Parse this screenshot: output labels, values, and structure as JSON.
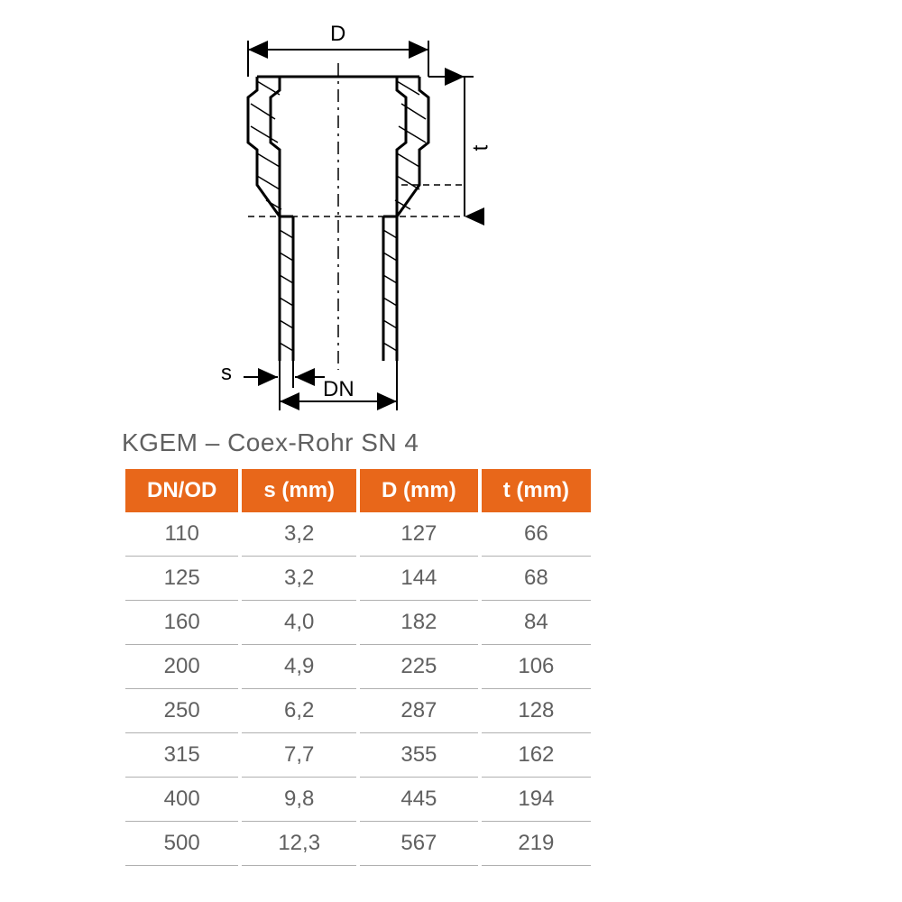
{
  "diagram": {
    "labels": {
      "D": "D",
      "t": "t",
      "s": "s",
      "DN": "DN"
    },
    "stroke_color": "#000000",
    "stroke_width_main": 3,
    "stroke_width_dim": 2,
    "dash_pattern": "8,6,3,6"
  },
  "table": {
    "title": "KGEM – Coex-Rohr SN 4",
    "header_bg": "#e8671a",
    "header_fg": "#ffffff",
    "body_fg": "#606060",
    "row_border": "#b0b0b0",
    "columns": [
      "DN/OD",
      "s (mm)",
      "D (mm)",
      "t (mm)"
    ],
    "rows": [
      [
        "110",
        "3,2",
        "127",
        "66"
      ],
      [
        "125",
        "3,2",
        "144",
        "68"
      ],
      [
        "160",
        "4,0",
        "182",
        "84"
      ],
      [
        "200",
        "4,9",
        "225",
        "106"
      ],
      [
        "250",
        "6,2",
        "287",
        "128"
      ],
      [
        "315",
        "7,7",
        "355",
        "162"
      ],
      [
        "400",
        "9,8",
        "445",
        "194"
      ],
      [
        "500",
        "12,3",
        "567",
        "219"
      ]
    ]
  }
}
